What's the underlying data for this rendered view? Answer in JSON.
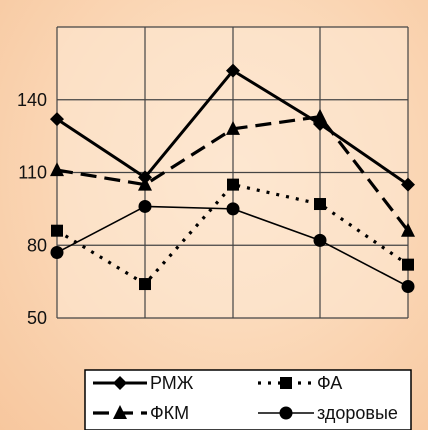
{
  "chart_data": {
    "type": "line",
    "title": "",
    "xlabel": "",
    "ylabel": "",
    "x": [
      1,
      2,
      3,
      4,
      5
    ],
    "ylim": [
      50,
      170
    ],
    "yticks": [
      50,
      80,
      110,
      140
    ],
    "grid": true,
    "legend_position": "bottom",
    "series": [
      {
        "name": "РМЖ",
        "values": [
          132,
          108,
          152,
          130,
          105
        ],
        "marker": "diamond",
        "line": "solid-thick",
        "color": "#000000"
      },
      {
        "name": "ФКМ",
        "values": [
          111,
          105,
          128,
          133,
          86
        ],
        "marker": "triangle",
        "line": "dashed-long",
        "color": "#000000"
      },
      {
        "name": "ФА",
        "values": [
          86,
          64,
          105,
          97,
          72
        ],
        "marker": "square",
        "line": "dotted",
        "color": "#000000"
      },
      {
        "name": "здоровые",
        "values": [
          77,
          96,
          95,
          82,
          63
        ],
        "marker": "circle",
        "line": "solid-thin",
        "color": "#000000"
      }
    ]
  },
  "colors": {
    "background": "#fbd9b9",
    "plot_area": "#fde8d2",
    "legend_box": "#ffffff",
    "ink": "#000000"
  }
}
